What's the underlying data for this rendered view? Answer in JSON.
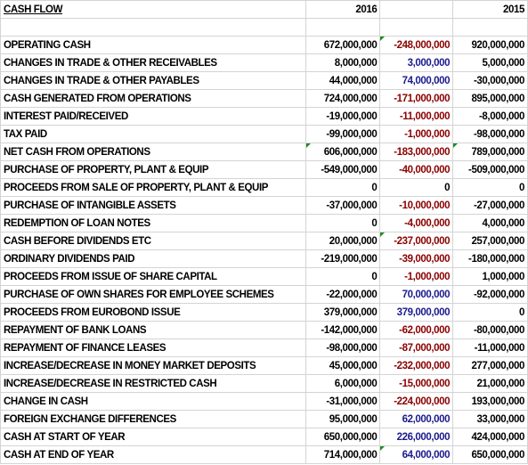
{
  "header": {
    "title": "CASH FLOW",
    "col_2016": "2016",
    "col_diff": "",
    "col_2015": "2015"
  },
  "colors": {
    "text": "#000000",
    "negative_change": "#8b0000",
    "positive_change": "#1a1a8e",
    "comment_flag": "#1e8c1e"
  },
  "rows": [
    {
      "label": "OPERATING CASH",
      "v2016": "672,000,000",
      "diff": "-248,000,000",
      "diff_color": "red",
      "v2015": "920,000,000",
      "flag_2016": false,
      "flag_diff": true
    },
    {
      "label": "CHANGES IN TRADE & OTHER RECEIVABLES",
      "v2016": "8,000,000",
      "diff": "3,000,000",
      "diff_color": "blue",
      "v2015": "5,000,000",
      "flag_2016": false,
      "flag_diff": false
    },
    {
      "label": "CHANGES IN TRADE & OTHER PAYABLES",
      "v2016": "44,000,000",
      "diff": "74,000,000",
      "diff_color": "blue",
      "v2015": "-30,000,000",
      "flag_2016": false,
      "flag_diff": false
    },
    {
      "label": "CASH GENERATED FROM OPERATIONS",
      "v2016": "724,000,000",
      "diff": "-171,000,000",
      "diff_color": "red",
      "v2015": "895,000,000",
      "flag_2016": false,
      "flag_diff": false
    },
    {
      "label": "INTEREST PAID/RECEIVED",
      "v2016": "-19,000,000",
      "diff": "-11,000,000",
      "diff_color": "red",
      "v2015": "-8,000,000",
      "flag_2016": false,
      "flag_diff": false
    },
    {
      "label": "TAX PAID",
      "v2016": "-99,000,000",
      "diff": "-1,000,000",
      "diff_color": "red",
      "v2015": "-98,000,000",
      "flag_2016": false,
      "flag_diff": false
    },
    {
      "label": "NET CASH FROM OPERATIONS",
      "v2016": "606,000,000",
      "diff": "-183,000,000",
      "diff_color": "red",
      "v2015": "789,000,000",
      "flag_2016": true,
      "flag_diff": false,
      "flag_2015": true
    },
    {
      "label": "PURCHASE OF PROPERTY, PLANT & EQUIP",
      "v2016": "-549,000,000",
      "diff": "-40,000,000",
      "diff_color": "red",
      "v2015": "-509,000,000",
      "flag_2016": false,
      "flag_diff": false
    },
    {
      "label": "PROCEEDS FROM SALE OF PROPERTY, PLANT & EQUIP",
      "v2016": "0",
      "diff": "0",
      "diff_color": "black",
      "v2015": "0",
      "flag_2016": false,
      "flag_diff": false
    },
    {
      "label": "PURCHASE OF INTANGIBLE ASSETS",
      "v2016": "-37,000,000",
      "diff": "-10,000,000",
      "diff_color": "red",
      "v2015": "-27,000,000",
      "flag_2016": false,
      "flag_diff": false
    },
    {
      "label": "REDEMPTION OF LOAN NOTES",
      "v2016": "0",
      "diff": "-4,000,000",
      "diff_color": "red",
      "v2015": "4,000,000",
      "flag_2016": false,
      "flag_diff": false
    },
    {
      "label": "CASH BEFORE DIVIDENDS ETC",
      "v2016": "20,000,000",
      "diff": "-237,000,000",
      "diff_color": "red",
      "v2015": "257,000,000",
      "flag_2016": false,
      "flag_diff": true
    },
    {
      "label": "ORDINARY DIVIDENDS PAID",
      "v2016": "-219,000,000",
      "diff": "-39,000,000",
      "diff_color": "red",
      "v2015": "-180,000,000",
      "flag_2016": false,
      "flag_diff": false
    },
    {
      "label": "PROCEEDS FROM ISSUE OF SHARE CAPITAL",
      "v2016": "0",
      "diff": "-1,000,000",
      "diff_color": "red",
      "v2015": "1,000,000",
      "flag_2016": false,
      "flag_diff": false
    },
    {
      "label": "PURCHASE OF OWN SHARES FOR EMPLOYEE SCHEMES",
      "v2016": "-22,000,000",
      "diff": "70,000,000",
      "diff_color": "blue",
      "v2015": "-92,000,000",
      "flag_2016": false,
      "flag_diff": false
    },
    {
      "label": "PROCEEDS FROM EUROBOND ISSUE",
      "v2016": "379,000,000",
      "diff": "379,000,000",
      "diff_color": "blue",
      "v2015": "0",
      "flag_2016": false,
      "flag_diff": false
    },
    {
      "label": "REPAYMENT OF BANK LOANS",
      "v2016": "-142,000,000",
      "diff": "-62,000,000",
      "diff_color": "red",
      "v2015": "-80,000,000",
      "flag_2016": false,
      "flag_diff": false
    },
    {
      "label": "REPAYMENT OF FINANCE LEASES",
      "v2016": "-98,000,000",
      "diff": "-87,000,000",
      "diff_color": "red",
      "v2015": "-11,000,000",
      "flag_2016": false,
      "flag_diff": false
    },
    {
      "label": "INCREASE/DECREASE IN MONEY MARKET DEPOSITS",
      "v2016": "45,000,000",
      "diff": "-232,000,000",
      "diff_color": "red",
      "v2015": "277,000,000",
      "flag_2016": false,
      "flag_diff": false
    },
    {
      "label": "INCREASE/DECREASE IN RESTRICTED CASH",
      "v2016": "6,000,000",
      "diff": "-15,000,000",
      "diff_color": "red",
      "v2015": "21,000,000",
      "flag_2016": false,
      "flag_diff": false
    },
    {
      "label": "CHANGE IN CASH",
      "v2016": "-31,000,000",
      "diff": "-224,000,000",
      "diff_color": "red",
      "v2015": "193,000,000",
      "flag_2016": false,
      "flag_diff": false
    },
    {
      "label": "FOREIGN EXCHANGE DIFFERENCES",
      "v2016": "95,000,000",
      "diff": "62,000,000",
      "diff_color": "blue",
      "v2015": "33,000,000",
      "flag_2016": false,
      "flag_diff": false
    },
    {
      "label": "CASH AT START OF YEAR",
      "v2016": "650,000,000",
      "diff": "226,000,000",
      "diff_color": "blue",
      "v2015": "424,000,000",
      "flag_2016": false,
      "flag_diff": false
    },
    {
      "label": "CASH AT END OF YEAR",
      "v2016": "714,000,000",
      "diff": "64,000,000",
      "diff_color": "blue",
      "v2015": "650,000,000",
      "flag_2016": false,
      "flag_diff": true
    }
  ]
}
